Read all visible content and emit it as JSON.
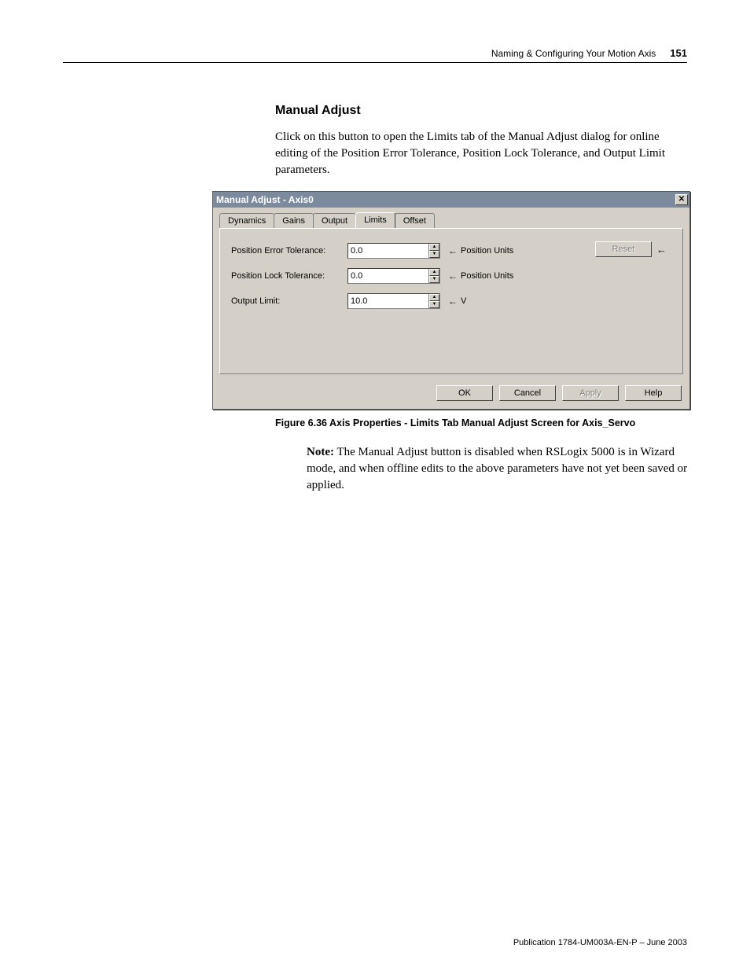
{
  "header": {
    "chapter": "Naming & Configuring Your Motion Axis",
    "page": "151"
  },
  "manual_adjust": {
    "heading": "Manual Adjust",
    "intro": "Click on this button to open the Limits tab of the Manual Adjust dialog for online editing of the Position Error Tolerance, Position Lock Tolerance, and Output Limit parameters."
  },
  "dialog": {
    "title": "Manual Adjust - Axis0",
    "tabs": [
      "Dynamics",
      "Gains",
      "Output",
      "Limits",
      "Offset"
    ],
    "active_tab": "Limits",
    "fields": {
      "pos_err": {
        "label": "Position Error Tolerance:",
        "value": "0.0",
        "unit": "Position Units"
      },
      "pos_lock": {
        "label": "Position Lock Tolerance:",
        "value": "0.0",
        "unit": "Position Units"
      },
      "out_limit": {
        "label": "Output Limit:",
        "value": "10.0",
        "unit": "V"
      }
    },
    "reset": "Reset",
    "buttons": {
      "ok": "OK",
      "cancel": "Cancel",
      "apply": "Apply",
      "help": "Help"
    }
  },
  "figure_caption": "Figure 6.36 Axis Properties - Limits Tab Manual Adjust Screen for Axis_Servo",
  "note": {
    "label": "Note:",
    "text": " The Manual Adjust button is disabled when RSLogix 5000 is in Wizard mode, and when offline edits to the above parameters have not yet been saved or applied."
  },
  "footer": "Publication 1784-UM003A-EN-P – June 2003",
  "glyph": {
    "left_arrow": "←",
    "up": "▲",
    "down": "▼",
    "close": "✕"
  }
}
